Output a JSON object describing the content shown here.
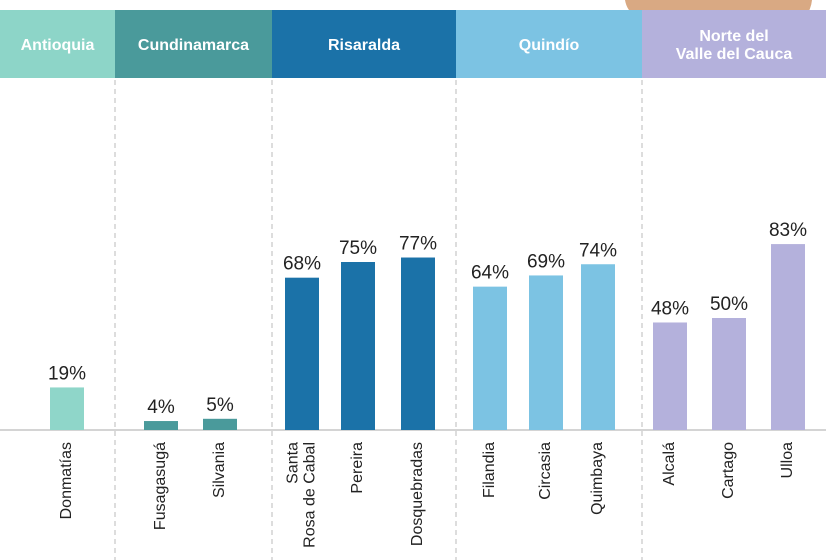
{
  "chart_data": {
    "type": "bar",
    "groups": [
      {
        "name": "Antioquia",
        "color": "#8fd6c9",
        "categories": [
          "Donmatías"
        ],
        "values": [
          19
        ],
        "value_labels": [
          "19%"
        ]
      },
      {
        "name": "Cundinamarca",
        "color": "#4a9a9b",
        "categories": [
          "Fusagasugá",
          "Silvania"
        ],
        "values": [
          4,
          5
        ],
        "value_labels": [
          "4%",
          "5%"
        ]
      },
      {
        "name": "Risaralda",
        "color": "#1b72a8",
        "categories": [
          "Santa\nRosa de Cabal",
          "Pereira",
          "Dosquebradas"
        ],
        "values": [
          68,
          75,
          77
        ],
        "value_labels": [
          "68%",
          "75%",
          "77%"
        ]
      },
      {
        "name": "Quindío",
        "color": "#7cc3e3",
        "categories": [
          "Filandia",
          "Circasia",
          "Quimbaya"
        ],
        "values": [
          64,
          69,
          74
        ],
        "value_labels": [
          "64%",
          "69%",
          "74%"
        ]
      },
      {
        "name": "Norte del\nValle del Cauca",
        "color": "#b4b1dc",
        "categories": [
          "Alcalá",
          "Cartago",
          "Ulloa"
        ],
        "values": [
          48,
          50,
          83
        ],
        "value_labels": [
          "48%",
          "50%",
          "83%"
        ]
      }
    ]
  }
}
